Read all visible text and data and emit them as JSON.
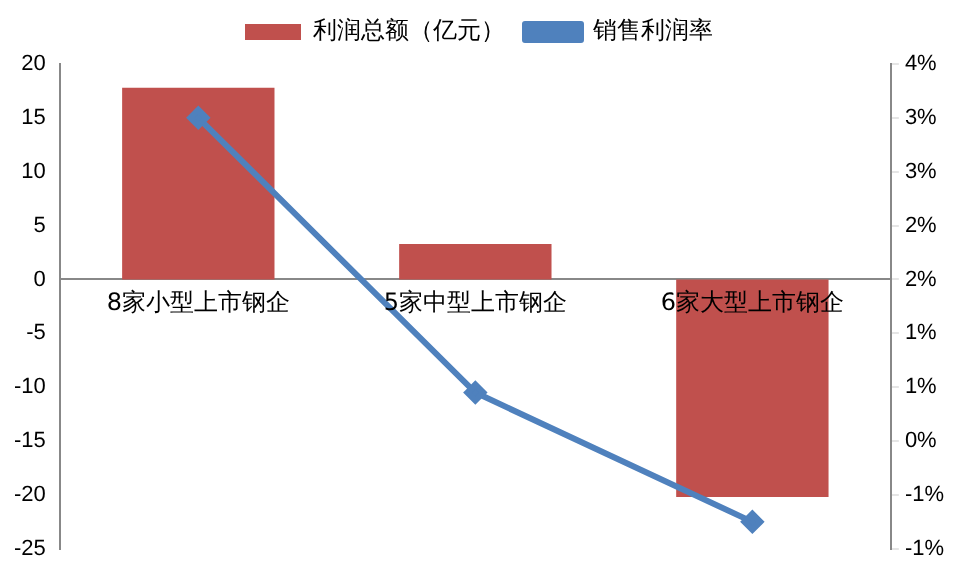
{
  "chart_data": {
    "type": "bar",
    "categories": [
      "8家小型上市钢企",
      "5家中型上市钢企",
      "6家大型上市钢企"
    ],
    "series": [
      {
        "name": "利润总额（亿元）",
        "color": "#c0504d",
        "values": [
          17.8,
          3.3,
          -20.2
        ]
      },
      {
        "name": "销售利润率",
        "type": "line",
        "axis": "y2",
        "color": "#4f81bd",
        "marker": "diamond",
        "values": [
          3.0,
          0.45,
          -0.75
        ]
      }
    ],
    "ylim": [
      -25,
      20
    ],
    "yticks": [
      -25,
      -20,
      -15,
      -10,
      -5,
      0,
      5,
      10,
      15,
      20
    ],
    "y2lim": [
      -1,
      3.5
    ],
    "y2ticks": [
      {
        "value": -1,
        "label": "-1%"
      },
      {
        "value": -0.5,
        "label": "-1%"
      },
      {
        "value": 0,
        "label": "0%"
      },
      {
        "value": 0.5,
        "label": "1%"
      },
      {
        "value": 1,
        "label": "1%"
      },
      {
        "value": 1.5,
        "label": "2%"
      },
      {
        "value": 2,
        "label": "2%"
      },
      {
        "value": 2.5,
        "label": "3%"
      },
      {
        "value": 3,
        "label": "3%"
      },
      {
        "value": 3.5,
        "label": "4%"
      }
    ],
    "grid": false,
    "legend": "top"
  }
}
